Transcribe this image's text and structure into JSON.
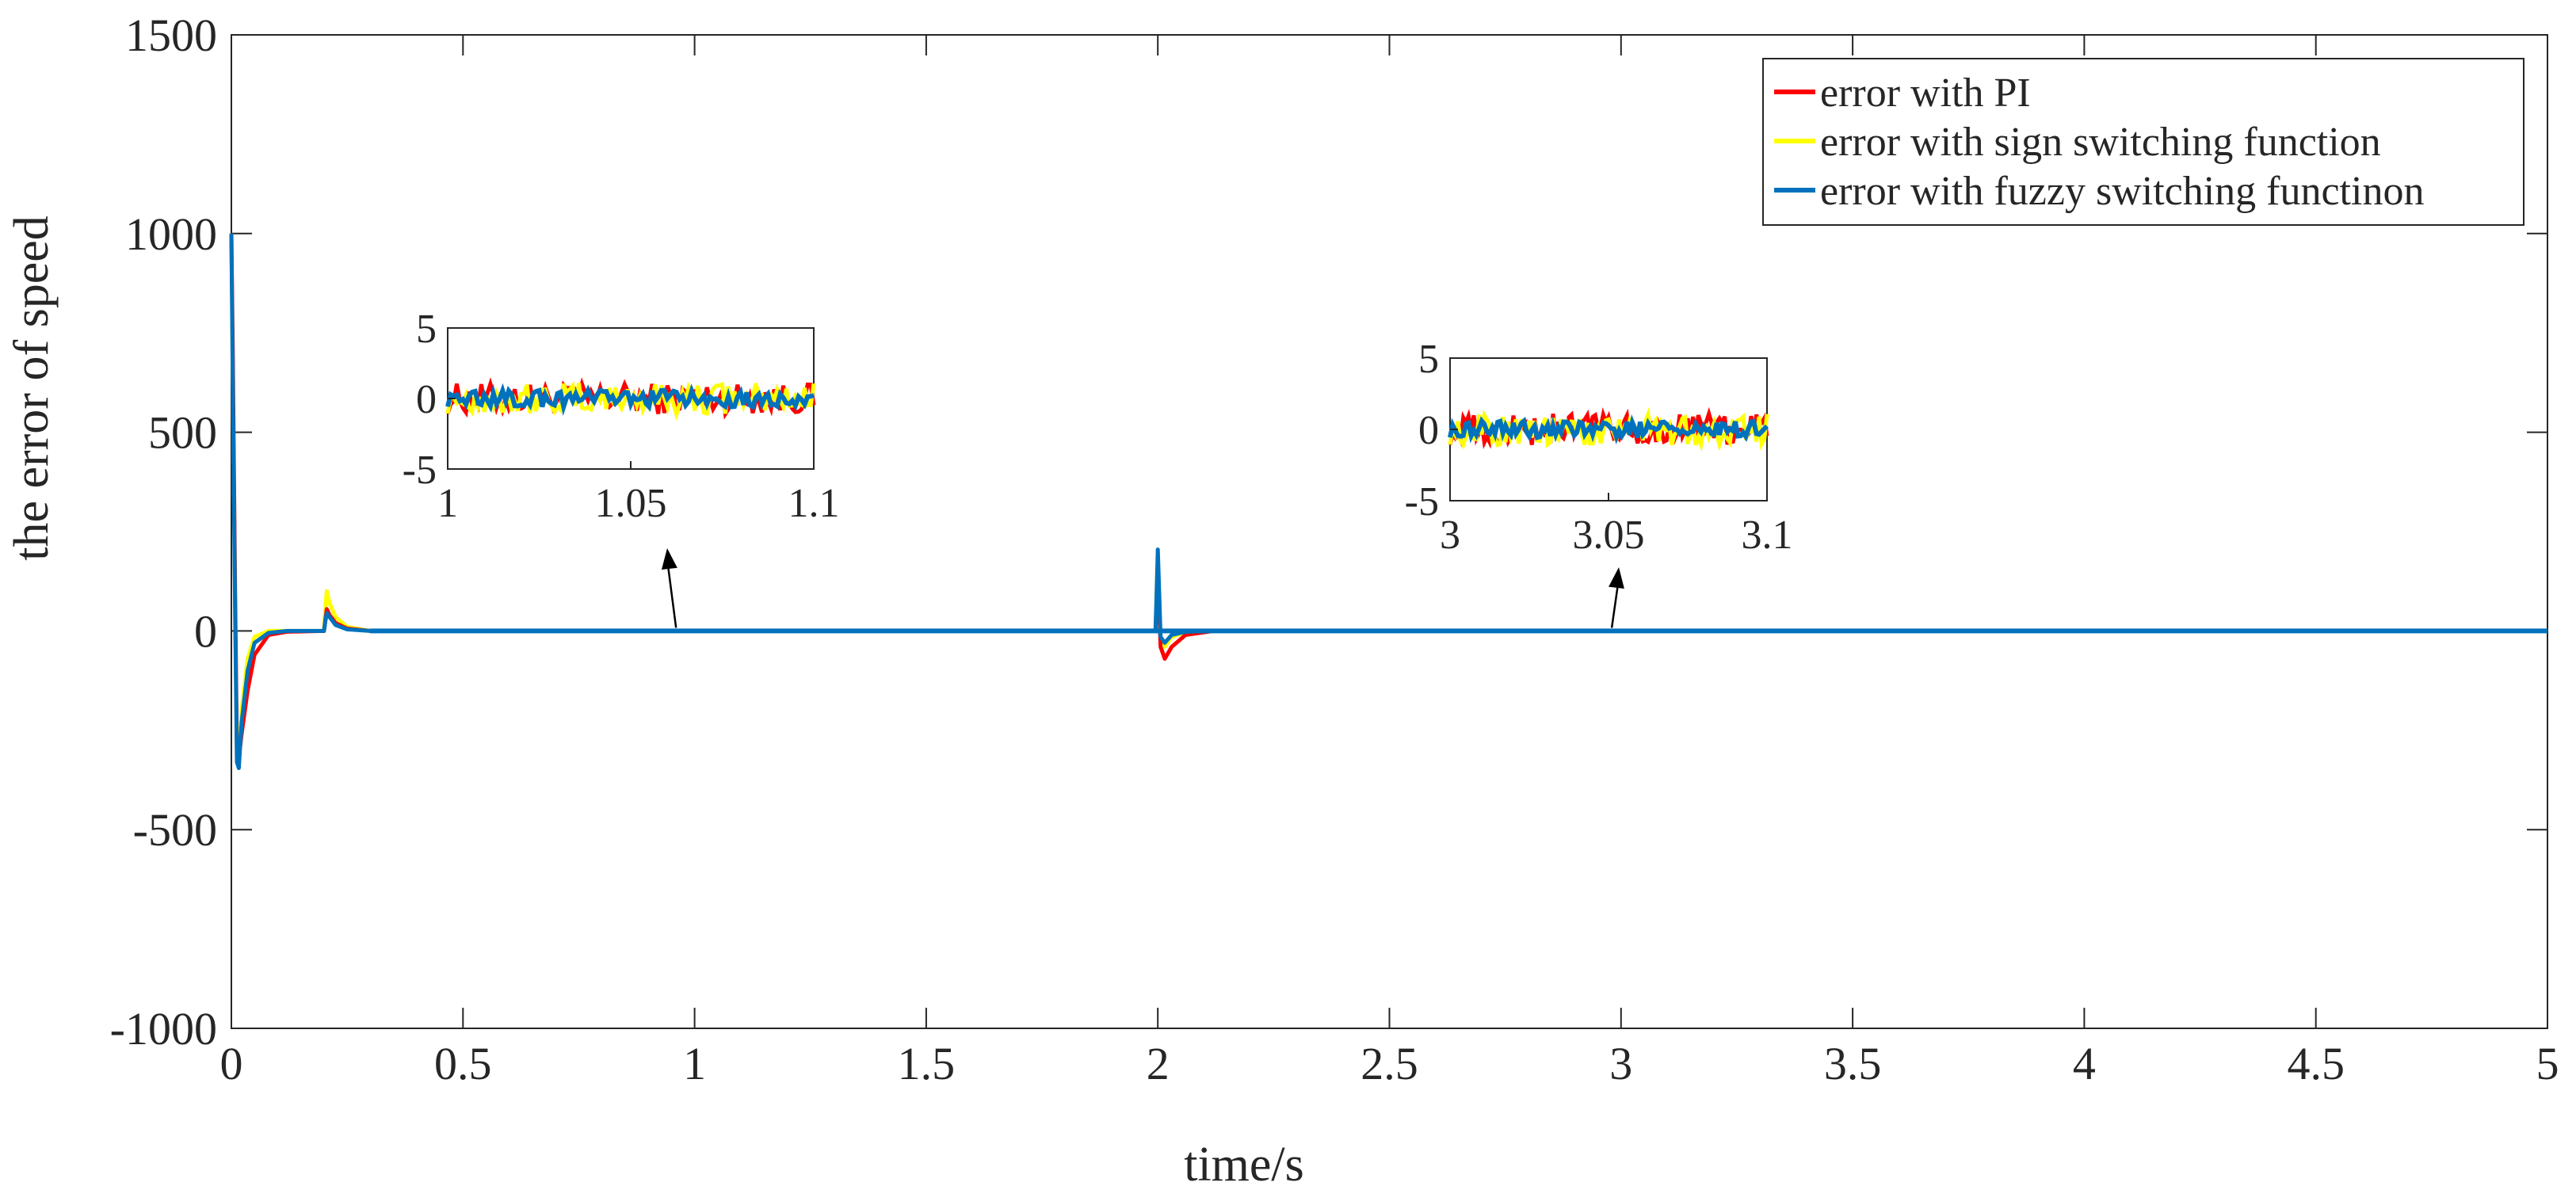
{
  "chart_data": {
    "type": "line",
    "xlabel": "time/s",
    "ylabel": "the error of speed",
    "xlim": [
      0,
      5
    ],
    "ylim": [
      -1000,
      1500
    ],
    "xticks": [
      "0",
      "0.5",
      "1",
      "1.5",
      "2",
      "2.5",
      "3",
      "3.5",
      "4",
      "4.5",
      "5"
    ],
    "yticks": [
      "-1000",
      "-500",
      "0",
      "500",
      "1000",
      "1500"
    ],
    "grid": false,
    "legend_position": "top-right",
    "series": [
      {
        "name": "error with PI",
        "color": "#ff0000",
        "points": [
          [
            0,
            1000
          ],
          [
            0.003,
            700
          ],
          [
            0.008,
            100
          ],
          [
            0.012,
            -300
          ],
          [
            0.016,
            -320
          ],
          [
            0.022,
            -260
          ],
          [
            0.035,
            -150
          ],
          [
            0.05,
            -60
          ],
          [
            0.08,
            -10
          ],
          [
            0.12,
            -2
          ],
          [
            0.2,
            0
          ],
          [
            0.203,
            30
          ],
          [
            0.206,
            55
          ],
          [
            0.212,
            40
          ],
          [
            0.225,
            20
          ],
          [
            0.25,
            6
          ],
          [
            0.3,
            0
          ],
          [
            1.995,
            0
          ],
          [
            2.0,
            150
          ],
          [
            2.006,
            -40
          ],
          [
            2.015,
            -70
          ],
          [
            2.03,
            -40
          ],
          [
            2.06,
            -10
          ],
          [
            2.12,
            0
          ],
          [
            5,
            0
          ]
        ]
      },
      {
        "name": "error with sign switching function",
        "color": "#ffff00",
        "points": [
          [
            0,
            1000
          ],
          [
            0.003,
            650
          ],
          [
            0.008,
            80
          ],
          [
            0.012,
            -310
          ],
          [
            0.016,
            -330
          ],
          [
            0.022,
            -200
          ],
          [
            0.035,
            -70
          ],
          [
            0.05,
            -15
          ],
          [
            0.08,
            0
          ],
          [
            0.2,
            0
          ],
          [
            0.203,
            60
          ],
          [
            0.206,
            100
          ],
          [
            0.212,
            70
          ],
          [
            0.225,
            35
          ],
          [
            0.25,
            10
          ],
          [
            0.3,
            0
          ],
          [
            1.995,
            0
          ],
          [
            2.0,
            190
          ],
          [
            2.006,
            -20
          ],
          [
            2.015,
            -40
          ],
          [
            2.03,
            -15
          ],
          [
            2.06,
            -3
          ],
          [
            2.12,
            0
          ],
          [
            5,
            0
          ]
        ]
      },
      {
        "name": "error with fuzzy switching functinon",
        "color": "#0072bd",
        "points": [
          [
            0,
            1000
          ],
          [
            0.003,
            620
          ],
          [
            0.008,
            50
          ],
          [
            0.012,
            -330
          ],
          [
            0.016,
            -345
          ],
          [
            0.022,
            -230
          ],
          [
            0.035,
            -100
          ],
          [
            0.05,
            -30
          ],
          [
            0.08,
            -5
          ],
          [
            0.12,
            0
          ],
          [
            0.2,
            0
          ],
          [
            0.203,
            25
          ],
          [
            0.206,
            45
          ],
          [
            0.212,
            35
          ],
          [
            0.225,
            15
          ],
          [
            0.25,
            4
          ],
          [
            0.3,
            0
          ],
          [
            1.995,
            0
          ],
          [
            2.0,
            205
          ],
          [
            2.006,
            -15
          ],
          [
            2.015,
            -30
          ],
          [
            2.03,
            -10
          ],
          [
            2.06,
            -2
          ],
          [
            2.12,
            0
          ],
          [
            5,
            0
          ]
        ]
      }
    ],
    "insets": [
      {
        "name": "inset-1",
        "xlim": [
          1,
          1.1
        ],
        "ylim": [
          -5,
          5
        ],
        "xticks": [
          "1",
          "1.05",
          "1.1"
        ],
        "yticks": [
          "-5",
          "0",
          "5"
        ],
        "arrow_target": [
          0.96,
          0
        ],
        "noise_amplitude": [
          1.1,
          1.1,
          0.6
        ]
      },
      {
        "name": "inset-2",
        "xlim": [
          3,
          3.1
        ],
        "ylim": [
          -5,
          5
        ],
        "xticks": [
          "3",
          "3.05",
          "3.1"
        ],
        "yticks": [
          "-5",
          "0",
          "5"
        ],
        "arrow_target": [
          2.98,
          0
        ],
        "noise_amplitude": [
          1.1,
          1.1,
          0.6
        ]
      }
    ]
  }
}
